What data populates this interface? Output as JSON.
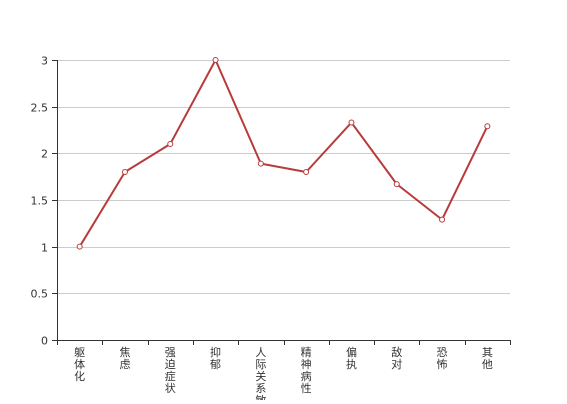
{
  "chart_data": {
    "type": "line",
    "categories": [
      "躯体化",
      "焦虑",
      "强迫症状",
      "抑郁",
      "人际关系敏感",
      "精神病性",
      "偏执",
      "敌对",
      "恐怖",
      "其他"
    ],
    "series": [
      {
        "values": [
          1.0,
          1.8,
          2.1,
          3.0,
          1.89,
          1.8,
          2.33,
          1.67,
          1.29,
          2.29
        ],
        "color": "#b83b3b"
      }
    ],
    "yticks": [
      "0",
      "0.5",
      "1",
      "1.5",
      "2",
      "2.5",
      "3"
    ],
    "ylim": [
      0,
      3
    ],
    "grid": true,
    "legend": "none"
  }
}
